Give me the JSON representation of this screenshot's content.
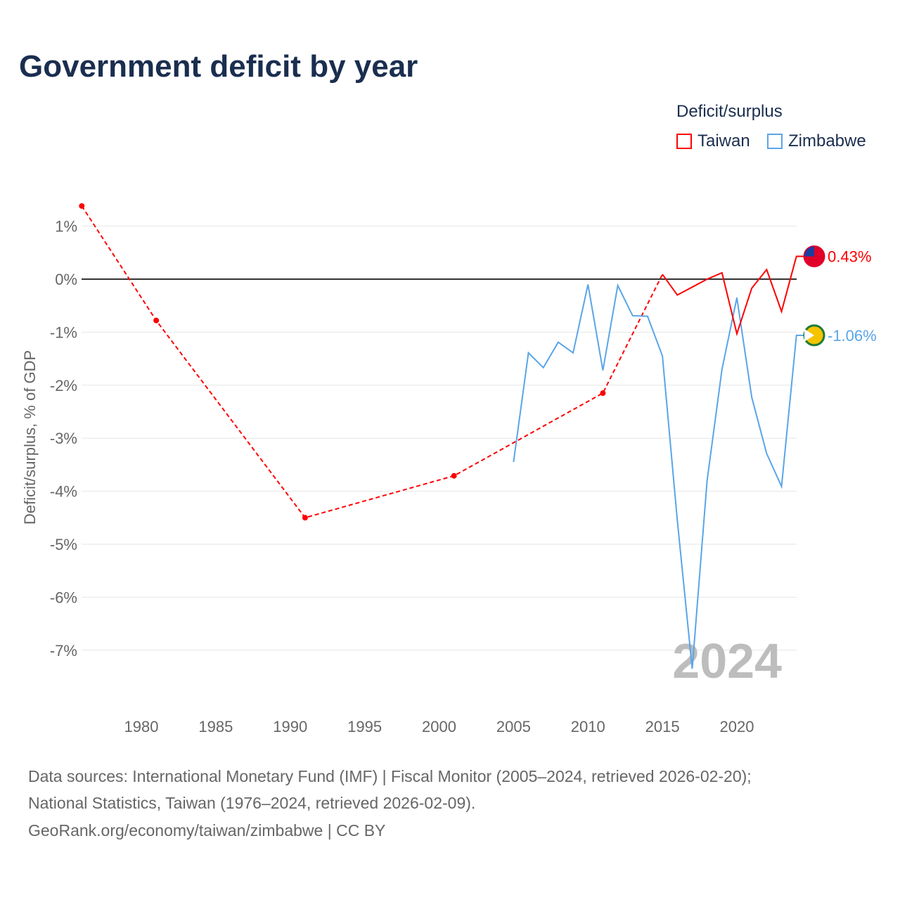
{
  "title": "Government deficit by year",
  "legend": {
    "title": "Deficit/surplus",
    "items": [
      {
        "label": "Taiwan",
        "color": "#ff0000"
      },
      {
        "label": "Zimbabwe",
        "color": "#5aa5e8"
      }
    ]
  },
  "watermark_year": "2024",
  "sources": [
    "Data sources: International Monetary Fund (IMF) | Fiscal Monitor (2005–2024, retrieved 2026-02-20);",
    "National Statistics, Taiwan (1976–2024, retrieved 2026-02-09).",
    "GeoRank.org/economy/taiwan/zimbabwe | CC BY"
  ],
  "chart_data": {
    "type": "line",
    "title": "Government deficit by year",
    "ylabel": "Deficit/surplus, % of GDP",
    "xlim": [
      1976,
      2024
    ],
    "ylim": [
      -8,
      1.5
    ],
    "xticks": [
      1980,
      1985,
      1990,
      1995,
      2000,
      2005,
      2010,
      2015,
      2020
    ],
    "yticks": [
      1,
      0,
      -1,
      -2,
      -3,
      -4,
      -5,
      -6,
      -7
    ],
    "ytick_labels": [
      "1%",
      "0%",
      "-1%",
      "-2%",
      "-3%",
      "-4%",
      "-5%",
      "-6%",
      "-7%"
    ],
    "series": [
      {
        "name": "Taiwan",
        "color": "#ff0000",
        "end_label": "0.43%",
        "sparse": {
          "x": [
            1976,
            1981,
            1991,
            2001,
            2011,
            2015
          ],
          "y": [
            1.38,
            -0.78,
            -4.5,
            -3.71,
            -2.15,
            0.09
          ]
        },
        "x": [
          2015,
          2016,
          2017,
          2018,
          2019,
          2020,
          2021,
          2022,
          2023,
          2024
        ],
        "y": [
          0.09,
          -0.3,
          -0.15,
          0.0,
          0.12,
          -1.03,
          -0.17,
          0.18,
          -0.61,
          0.43
        ]
      },
      {
        "name": "Zimbabwe",
        "color": "#5aa5e8",
        "end_label": "-1.06%",
        "x": [
          2005,
          2006,
          2007,
          2008,
          2009,
          2010,
          2011,
          2012,
          2013,
          2014,
          2015,
          2016,
          2017,
          2018,
          2019,
          2020,
          2021,
          2022,
          2023,
          2024
        ],
        "y": [
          -3.45,
          -1.39,
          -1.67,
          -1.19,
          -1.39,
          -0.1,
          -1.72,
          -0.12,
          -0.69,
          -0.7,
          -1.45,
          -4.55,
          -7.35,
          -3.8,
          -1.7,
          -0.35,
          -2.23,
          -3.29,
          -3.91,
          -1.06
        ]
      }
    ]
  }
}
